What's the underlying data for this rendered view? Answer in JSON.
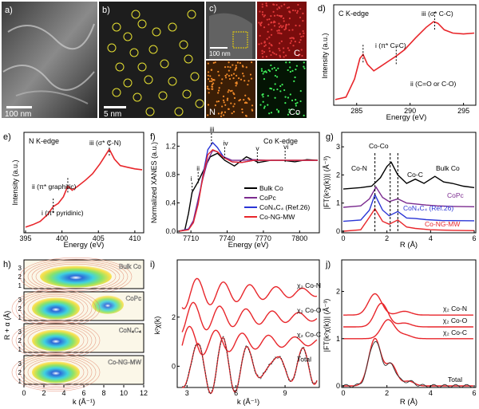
{
  "panels": {
    "a": {
      "letter": "a)",
      "scale": "100 nm"
    },
    "b": {
      "letter": "b)",
      "scale": "5 nm"
    },
    "c": {
      "letter": "c)",
      "scale": "100 nm",
      "maps": [
        "C",
        "N",
        "Co"
      ]
    },
    "d": {
      "letter": "d)",
      "title": "C K-edge",
      "xlabel": "Energy (eV)",
      "ylabel": "Intensity (a.u.)",
      "xticks": [
        "285",
        "290",
        "295"
      ],
      "ann": {
        "i": "i (π* C=C)",
        "ii": "ii (C=O or C-O)",
        "iii": "iii (σ* C-C)"
      }
    },
    "e": {
      "letter": "e)",
      "title": "N K-edge",
      "xlabel": "Energy (eV)",
      "ylabel": "Intensity (a.u.)",
      "xticks": [
        "395",
        "400",
        "405",
        "410"
      ],
      "ann": {
        "i": "i (π* pyridinic)",
        "ii": "ii (π* graphitic)",
        "iii": "iii (σ* C-N)"
      }
    },
    "f": {
      "letter": "f)",
      "title": "Co K-edge",
      "xlabel": "Energy (eV)",
      "ylabel": "Normalized XANES (a.u.)",
      "xticks": [
        "7710",
        "7740",
        "7770",
        "7800"
      ],
      "yticks": [
        "0.0",
        "0.4",
        "0.8",
        "1.2"
      ],
      "legend": [
        "Bulk Co",
        "CoPc",
        "CoN₄C₄ (Ref.26)",
        "Co-NG-MW"
      ],
      "marks": [
        "i",
        "ii",
        "iii",
        "iv",
        "v",
        "vi"
      ]
    },
    "g": {
      "letter": "g)",
      "xlabel": "R (Å)",
      "ylabel": "|FT(k²χ(k))| (Å⁻³)",
      "xticks": [
        "0",
        "2",
        "4",
        "6"
      ],
      "yticks": [
        "0",
        "1",
        "2",
        "3"
      ],
      "labels": [
        "Co-N",
        "Co-Co",
        "Co-C",
        "Bulk Co",
        "CoPc",
        "CoN₄C₄ (Ref.26)",
        "Co-NG-MW"
      ]
    },
    "h": {
      "letter": "h)",
      "xlabel": "k (Å⁻¹)",
      "ylabel": "R + α (Å)",
      "xticks": [
        "0",
        "2",
        "4",
        "6",
        "8",
        "10",
        "12"
      ],
      "yticks": [
        "1",
        "2",
        "3"
      ],
      "maps": [
        "Bulk Co",
        "CoPc",
        "CoN₄C₄",
        "Co-NG-MW"
      ]
    },
    "i": {
      "letter": "i)",
      "xlabel": "k (Å⁻¹)",
      "ylabel": "k²χ(k)",
      "xticks": [
        "3",
        "6",
        "9"
      ],
      "yticks": [
        "0",
        "2"
      ],
      "labels": [
        "χ₂ Co-N",
        "χ₂ Co-O",
        "χ₂ Co-C",
        "Total"
      ]
    },
    "j": {
      "letter": "j)",
      "xlabel": "R (Å)",
      "ylabel": "|FT(k²χ(k))| (Å⁻³)",
      "xticks": [
        "0",
        "2",
        "4",
        "6"
      ],
      "yticks": [
        "0",
        "1",
        "2"
      ],
      "labels": [
        "χ₂ Co-N",
        "χ₂ Co-O",
        "χ₂ Co-C",
        "Total"
      ]
    }
  },
  "colors": {
    "red": "#e8262b",
    "black": "#000000",
    "purple": "#7b2b8f",
    "blue": "#2a35d6",
    "map_bg": "#ffffff"
  },
  "chart_data": [
    {
      "panel": "d",
      "type": "line",
      "title": "C K-edge",
      "xlabel": "Energy (eV)",
      "ylabel": "Intensity (a.u.)",
      "xlim": [
        283,
        296
      ],
      "series": [
        {
          "x": [
            283,
            284,
            284.8,
            285.3,
            285.6,
            286.0,
            286.6,
            287.2,
            288.0,
            288.7,
            289.5,
            290.5,
            291.5,
            292.2,
            292.6,
            293.2,
            294,
            295,
            296
          ],
          "y": [
            0.05,
            0.08,
            0.3,
            0.55,
            0.6,
            0.48,
            0.4,
            0.45,
            0.52,
            0.58,
            0.66,
            0.8,
            0.93,
            1.0,
            0.98,
            0.9,
            0.86,
            0.85,
            0.86
          ]
        }
      ]
    },
    {
      "panel": "e",
      "type": "line",
      "title": "N K-edge",
      "xlabel": "Energy (eV)",
      "ylabel": "Intensity (a.u.)",
      "xlim": [
        395,
        411
      ],
      "series": [
        {
          "x": [
            395,
            396,
            397,
            398,
            398.8,
            399.5,
            400.2,
            400.8,
            401.4,
            402.2,
            403.2,
            404.2,
            405.2,
            406.0,
            406.5,
            407.2,
            408,
            409,
            410,
            411
          ],
          "y": [
            0.05,
            0.08,
            0.12,
            0.2,
            0.3,
            0.34,
            0.42,
            0.55,
            0.5,
            0.55,
            0.62,
            0.7,
            0.82,
            0.93,
            1.0,
            0.88,
            0.8,
            0.78,
            0.76,
            0.75
          ]
        }
      ]
    },
    {
      "panel": "f",
      "type": "line",
      "title": "Co K-edge",
      "xlabel": "Energy (eV)",
      "ylabel": "Normalized XANES (a.u.)",
      "xlim": [
        7700,
        7815
      ],
      "ylim": [
        0,
        1.35
      ],
      "series": [
        {
          "name": "Bulk Co",
          "x": [
            7700,
            7705,
            7708,
            7711,
            7716,
            7721,
            7726,
            7732,
            7738,
            7746,
            7756,
            7766,
            7776,
            7786,
            7796,
            7806,
            7815
          ],
          "y": [
            0.0,
            0.02,
            0.25,
            0.55,
            0.7,
            0.88,
            1.05,
            1.1,
            1.0,
            0.92,
            1.05,
            0.97,
            1.0,
            1.0,
            0.98,
            1.01,
            1.0
          ]
        },
        {
          "name": "CoPc",
          "x": [
            7700,
            7708,
            7712,
            7716,
            7720,
            7724,
            7728,
            7732,
            7737,
            7744,
            7752,
            7762,
            7772,
            7782,
            7795,
            7815
          ],
          "y": [
            0.0,
            0.03,
            0.15,
            0.45,
            0.75,
            1.0,
            1.14,
            1.12,
            1.05,
            1.0,
            1.0,
            1.01,
            1.0,
            1.0,
            1.0,
            1.0
          ]
        },
        {
          "name": "CoN₄C₄ (Ref.26)",
          "x": [
            7700,
            7708,
            7712,
            7716,
            7720,
            7724,
            7728,
            7732,
            7737,
            7744,
            7752,
            7762,
            7772,
            7782,
            7795,
            7815
          ],
          "y": [
            0.0,
            0.03,
            0.12,
            0.4,
            0.8,
            1.15,
            1.25,
            1.18,
            1.05,
            0.98,
            0.97,
            1.0,
            1.0,
            1.0,
            1.0,
            1.0
          ]
        },
        {
          "name": "Co-NG-MW",
          "x": [
            7700,
            7708,
            7712,
            7716,
            7720,
            7724,
            7728,
            7732,
            7737,
            7744,
            7752,
            7762,
            7772,
            7782,
            7795,
            7815
          ],
          "y": [
            0.0,
            0.02,
            0.12,
            0.38,
            0.78,
            1.08,
            1.15,
            1.12,
            1.04,
            0.98,
            0.97,
            1.0,
            1.0,
            1.0,
            1.0,
            1.0
          ]
        }
      ]
    },
    {
      "panel": "g",
      "type": "line",
      "xlabel": "R (Å)",
      "ylabel": "|FT(k²χ(k))| (Å⁻³)",
      "xlim": [
        0,
        6
      ],
      "ylim": [
        0,
        3.4
      ],
      "series": [
        {
          "name": "Bulk Co",
          "offset": 1.5,
          "x": [
            0,
            0.8,
            1.3,
            1.7,
            2.0,
            2.2,
            2.5,
            2.9,
            3.3,
            3.7,
            4.2,
            4.6,
            5.0,
            5.5,
            6.0
          ],
          "y": [
            0,
            0.05,
            0.1,
            0.4,
            0.8,
            0.95,
            0.5,
            0.2,
            0.35,
            0.2,
            0.45,
            0.25,
            0.2,
            0.1,
            0.05
          ]
        },
        {
          "name": "CoPc",
          "offset": 0.85,
          "x": [
            0,
            0.8,
            1.2,
            1.5,
            1.8,
            2.1,
            2.5,
            2.9,
            3.3,
            3.8,
            4.3,
            5.0,
            6.0
          ],
          "y": [
            0,
            0.05,
            0.3,
            0.72,
            0.35,
            0.2,
            0.3,
            0.15,
            0.12,
            0.08,
            0.05,
            0.03,
            0.02
          ]
        },
        {
          "name": "CoN₄C₄ (Ref.26)",
          "offset": 0.35,
          "x": [
            0,
            0.8,
            1.2,
            1.45,
            1.8,
            2.1,
            2.5,
            2.9,
            3.3,
            3.8,
            4.5,
            6.0
          ],
          "y": [
            0,
            0.05,
            0.4,
            0.95,
            0.4,
            0.2,
            0.35,
            0.12,
            0.1,
            0.06,
            0.03,
            0.02
          ]
        },
        {
          "name": "Co-NG-MW",
          "offset": 0,
          "x": [
            0,
            0.8,
            1.2,
            1.45,
            1.8,
            2.1,
            2.5,
            2.9,
            3.3,
            4.0,
            5.0,
            6.0
          ],
          "y": [
            0,
            0.05,
            0.5,
            0.8,
            0.35,
            0.25,
            0.4,
            0.15,
            0.1,
            0.05,
            0.03,
            0.02
          ]
        }
      ]
    },
    {
      "panel": "i",
      "type": "line",
      "xlabel": "k (Å⁻¹)",
      "ylabel": "k²χ(k)",
      "xlim": [
        2.5,
        11
      ],
      "ylim": [
        -0.8,
        4.2
      ],
      "series": [
        {
          "name": "χ₂ Co-N",
          "offset": 3.0
        },
        {
          "name": "χ₂ Co-O",
          "offset": 2.0
        },
        {
          "name": "χ₂ Co-C",
          "offset": 1.0
        },
        {
          "name": "Total",
          "offset": 0
        }
      ]
    },
    {
      "panel": "j",
      "type": "line",
      "xlabel": "R (Å)",
      "ylabel": "|FT(k²χ(k))| (Å⁻³)",
      "xlim": [
        0,
        6
      ],
      "ylim": [
        0,
        2.6
      ],
      "series": [
        {
          "name": "χ₂ Co-N",
          "offset": 1.5
        },
        {
          "name": "χ₂ Co-O",
          "offset": 1.25
        },
        {
          "name": "χ₂ Co-C",
          "offset": 1.0
        },
        {
          "name": "Total",
          "offset": 0
        }
      ]
    }
  ]
}
